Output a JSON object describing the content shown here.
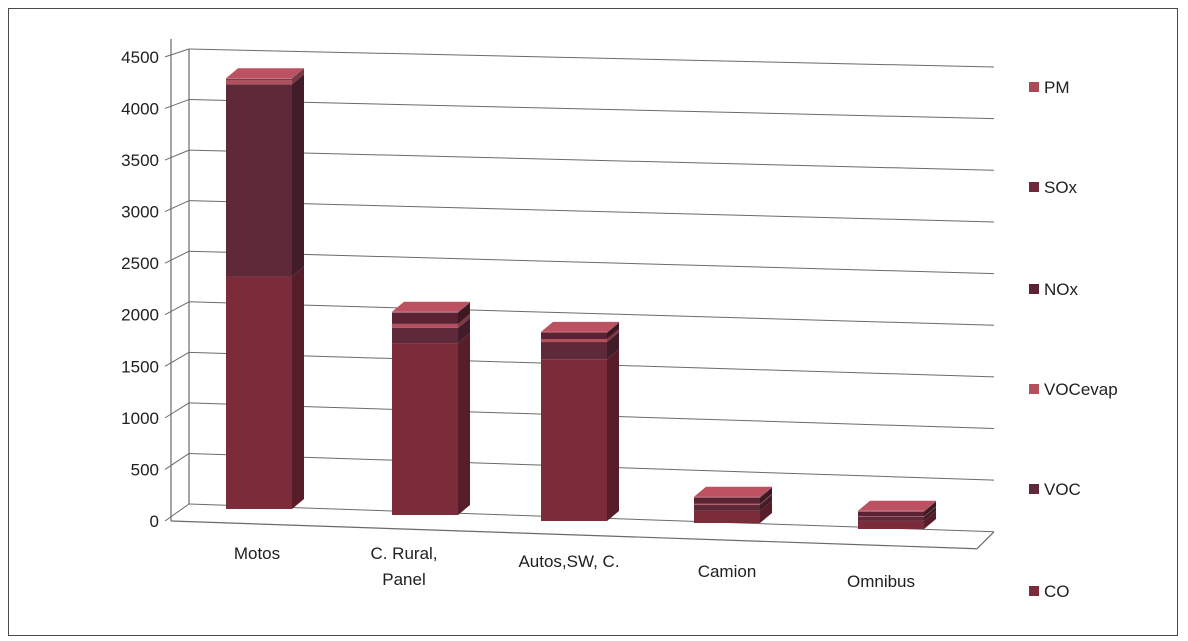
{
  "chart_data": {
    "type": "bar",
    "stacked": true,
    "three_d": true,
    "categories": [
      [
        "Motos"
      ],
      [
        "C. Rural,",
        "Panel"
      ],
      [
        "Autos,SW, C."
      ],
      [
        "Camion"
      ],
      [
        "Omnibus"
      ]
    ],
    "category_names": [
      "Motos",
      "C. Rural, Panel",
      "Autos,SW, C.",
      "Camion",
      "Omnibus"
    ],
    "series": [
      {
        "name": "CO",
        "color": "#7c2b3b",
        "values": [
          2300,
          1700,
          1600,
          120,
          80
        ]
      },
      {
        "name": "VOC",
        "color": "#5e2a3a",
        "values": [
          1900,
          150,
          170,
          60,
          40
        ]
      },
      {
        "name": "VOCevap",
        "color": "#b4505e",
        "values": [
          40,
          40,
          30,
          10,
          5
        ]
      },
      {
        "name": "NOx",
        "color": "#5a2233",
        "values": [
          10,
          110,
          60,
          60,
          45
        ]
      },
      {
        "name": "SOx",
        "color": "#6e2a3a",
        "values": [
          5,
          5,
          5,
          5,
          5
        ]
      },
      {
        "name": "PM",
        "color": "#aa4a58",
        "values": [
          5,
          5,
          5,
          5,
          5
        ]
      }
    ],
    "y_ticks": [
      "0",
      "500",
      "1000",
      "1500",
      "2000",
      "2500",
      "3000",
      "3500",
      "4000",
      "4500"
    ],
    "ylim": [
      0,
      4500
    ],
    "grid": true,
    "legend_position": "right",
    "legend_order": [
      "PM",
      "SOx",
      "NOx",
      "VOCevap",
      "VOC",
      "CO"
    ]
  }
}
